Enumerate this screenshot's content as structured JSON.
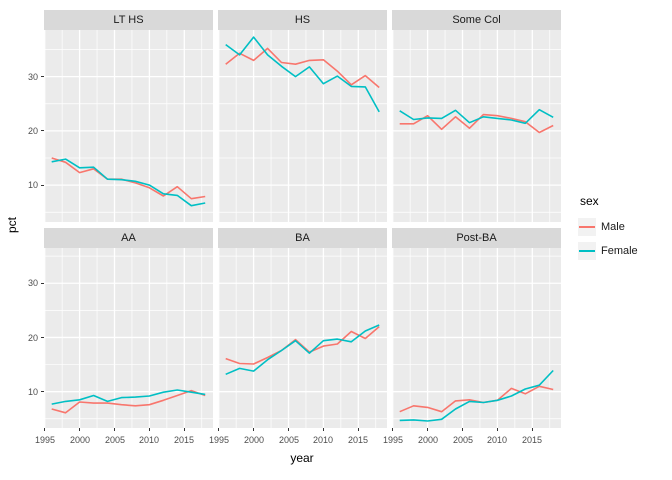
{
  "figure": {
    "y_axis_title": "pct",
    "x_axis_title": "year",
    "y_ticks": [
      "30",
      "20",
      "10"
    ],
    "x_ticks": [
      "1995",
      "2000",
      "2005",
      "2010",
      "2015"
    ],
    "legend": {
      "title": "sex",
      "entries": [
        {
          "label": "Male",
          "color": "#F8766D"
        },
        {
          "label": "Female",
          "color": "#00BFC4"
        }
      ]
    },
    "colors": {
      "male": "#F8766D",
      "female": "#00BFC4",
      "panel_background": "#EBEBEB",
      "strip_background": "#D9D9D9",
      "gridline": "#FFFFFF"
    }
  },
  "chart_data": {
    "type": "line",
    "title": "",
    "xlabel": "year",
    "ylabel": "pct",
    "legend_title": "sex",
    "legend_position": "right",
    "grid": "on",
    "x": [
      1996,
      1998,
      2000,
      2002,
      2004,
      2006,
      2008,
      2010,
      2012,
      2014,
      2016,
      2018
    ],
    "x_tick_values": [
      1995,
      2000,
      2005,
      2010,
      2015
    ],
    "y_tick_values": [
      10,
      20,
      30
    ],
    "x_minor_gridlines": [
      1997.5,
      2002.5,
      2007.5,
      2012.5,
      2017.5
    ],
    "y_minor_gridlines": [
      5,
      15,
      25,
      35
    ],
    "ylim": [
      3.2,
      38.6
    ],
    "facets": [
      {
        "label": "LT HS",
        "series": [
          {
            "name": "Male",
            "color": "#F8766D",
            "values": [
              15.0,
              14.2,
              12.3,
              13.0,
              11.1,
              11.1,
              10.4,
              9.5,
              8.0,
              9.7,
              7.5,
              7.9
            ]
          },
          {
            "name": "Female",
            "color": "#00BFC4",
            "values": [
              14.3,
              14.8,
              13.2,
              13.3,
              11.1,
              11.0,
              10.7,
              10.0,
              8.4,
              8.1,
              6.2,
              6.7
            ]
          }
        ]
      },
      {
        "label": "HS",
        "series": [
          {
            "name": "Male",
            "color": "#F8766D",
            "values": [
              32.3,
              34.3,
              33.0,
              35.2,
              32.6,
              32.3,
              33.0,
              33.1,
              31.0,
              28.5,
              30.2,
              28.0
            ]
          },
          {
            "name": "Female",
            "color": "#00BFC4",
            "values": [
              35.9,
              34.0,
              37.3,
              34.0,
              31.9,
              30.0,
              31.8,
              28.7,
              30.1,
              28.2,
              28.1,
              23.5
            ]
          }
        ]
      },
      {
        "label": "Some Col",
        "series": [
          {
            "name": "Male",
            "color": "#F8766D",
            "values": [
              21.3,
              21.3,
              22.8,
              20.3,
              22.6,
              20.5,
              23.0,
              22.8,
              22.3,
              21.7,
              19.7,
              21.0
            ]
          },
          {
            "name": "Female",
            "color": "#00BFC4",
            "values": [
              23.7,
              22.1,
              22.4,
              22.3,
              23.8,
              21.5,
              22.6,
              22.3,
              22.0,
              21.4,
              23.9,
              22.5
            ]
          }
        ]
      },
      {
        "label": "AA",
        "series": [
          {
            "name": "Male",
            "color": "#F8766D",
            "values": [
              6.8,
              6.1,
              8.1,
              7.9,
              7.9,
              7.6,
              7.4,
              7.6,
              8.4,
              9.3,
              10.2,
              9.3
            ]
          },
          {
            "name": "Female",
            "color": "#00BFC4",
            "values": [
              7.7,
              8.2,
              8.5,
              9.3,
              8.2,
              8.9,
              9.0,
              9.2,
              9.9,
              10.3,
              9.9,
              9.5
            ]
          }
        ]
      },
      {
        "label": "BA",
        "series": [
          {
            "name": "Male",
            "color": "#F8766D",
            "values": [
              16.1,
              15.2,
              15.1,
              16.3,
              17.6,
              19.6,
              17.3,
              18.4,
              18.8,
              21.1,
              19.8,
              22.0
            ]
          },
          {
            "name": "Female",
            "color": "#00BFC4",
            "values": [
              13.2,
              14.3,
              13.8,
              15.9,
              17.6,
              19.4,
              17.1,
              19.4,
              19.7,
              19.2,
              21.2,
              22.3
            ]
          }
        ]
      },
      {
        "label": "Post-BA",
        "series": [
          {
            "name": "Male",
            "color": "#F8766D",
            "values": [
              6.3,
              7.4,
              7.1,
              6.3,
              8.3,
              8.5,
              8.0,
              8.4,
              10.6,
              9.6,
              11.0,
              10.4
            ]
          },
          {
            "name": "Female",
            "color": "#00BFC4",
            "values": [
              4.7,
              4.8,
              4.6,
              4.9,
              6.8,
              8.2,
              8.0,
              8.4,
              9.2,
              10.5,
              11.2,
              13.9
            ]
          }
        ]
      }
    ]
  }
}
